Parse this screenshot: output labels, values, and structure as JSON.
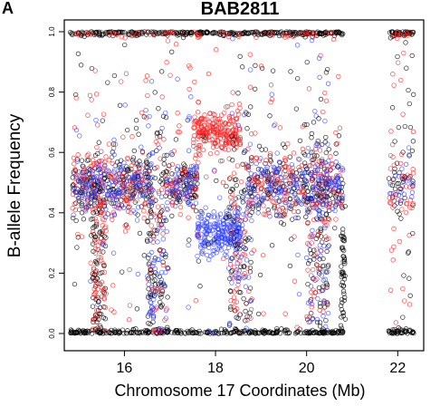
{
  "panel_label": "A",
  "chart_data": {
    "type": "scatter",
    "title": "BAB2811",
    "xlabel": "Chromosome 17 Coordinates (Mb)",
    "ylabel": "B-allele Frequency",
    "xlim": [
      14.7,
      22.55
    ],
    "ylim": [
      0,
      1.0
    ],
    "x_ticks": [
      16,
      18,
      20,
      22
    ],
    "y_ticks": [
      0.0,
      0.2,
      0.4,
      0.6,
      0.8,
      1.0
    ],
    "x_tick_labels": [
      "16",
      "18",
      "20",
      "22"
    ],
    "y_tick_labels": [
      "0.0",
      "0.2",
      "0.4",
      "0.6",
      "0.8",
      "1.0"
    ],
    "grid": false,
    "marker": "open-circle",
    "data_gap_mb": [
      20.9,
      21.8
    ],
    "series_colors": [
      "#000000",
      "#ff2020",
      "#3344ff"
    ],
    "clusters": [
      {
        "color_index": 0,
        "x_range": [
          14.8,
          20.8
        ],
        "y_center": 1.0,
        "y_spread": 0.006,
        "count": 330
      },
      {
        "color_index": 0,
        "x_range": [
          14.8,
          20.8
        ],
        "y_center": 0.0,
        "y_spread": 0.006,
        "count": 330
      },
      {
        "color_index": 0,
        "x_range": [
          21.8,
          22.35
        ],
        "y_center": 1.0,
        "y_spread": 0.006,
        "count": 45
      },
      {
        "color_index": 0,
        "x_range": [
          21.8,
          22.35
        ],
        "y_center": 0.0,
        "y_spread": 0.006,
        "count": 45
      },
      {
        "color_index": 1,
        "x_range": [
          14.9,
          20.6
        ],
        "y_center": 1.0,
        "y_spread": 0.01,
        "count": 70
      },
      {
        "color_index": 1,
        "x_range": [
          21.9,
          22.3
        ],
        "y_center": 1.0,
        "y_spread": 0.01,
        "count": 10
      },
      {
        "color_index": 0,
        "x_range": [
          14.85,
          16.6
        ],
        "y_center": 0.49,
        "y_spread": 0.05,
        "count": 180
      },
      {
        "color_index": 1,
        "x_range": [
          14.85,
          16.6
        ],
        "y_center": 0.49,
        "y_spread": 0.05,
        "count": 160
      },
      {
        "color_index": 2,
        "x_range": [
          14.85,
          16.6
        ],
        "y_center": 0.49,
        "y_spread": 0.045,
        "count": 170
      },
      {
        "color_index": 0,
        "x_range": [
          16.9,
          17.6
        ],
        "y_center": 0.49,
        "y_spread": 0.04,
        "count": 70
      },
      {
        "color_index": 2,
        "x_range": [
          16.9,
          17.6
        ],
        "y_center": 0.49,
        "y_spread": 0.04,
        "count": 70
      },
      {
        "color_index": 1,
        "x_range": [
          16.9,
          17.6
        ],
        "y_center": 0.49,
        "y_spread": 0.04,
        "count": 45
      },
      {
        "color_index": 1,
        "x_range": [
          17.5,
          18.55
        ],
        "y_center": 0.665,
        "y_spread": 0.035,
        "count": 230
      },
      {
        "color_index": 2,
        "x_range": [
          17.6,
          18.55
        ],
        "y_center": 0.335,
        "y_spread": 0.04,
        "count": 230
      },
      {
        "color_index": 0,
        "x_range": [
          18.7,
          20.8
        ],
        "y_center": 0.49,
        "y_spread": 0.05,
        "count": 170
      },
      {
        "color_index": 1,
        "x_range": [
          18.7,
          20.8
        ],
        "y_center": 0.49,
        "y_spread": 0.05,
        "count": 150
      },
      {
        "color_index": 2,
        "x_range": [
          18.7,
          20.8
        ],
        "y_center": 0.49,
        "y_spread": 0.045,
        "count": 190
      },
      {
        "color_index": 0,
        "x_range": [
          21.8,
          22.35
        ],
        "y_center": 0.49,
        "y_spread": 0.05,
        "count": 25
      },
      {
        "color_index": 1,
        "x_range": [
          21.8,
          22.35
        ],
        "y_center": 0.49,
        "y_spread": 0.05,
        "count": 25
      },
      {
        "color_index": 2,
        "x_range": [
          21.8,
          22.35
        ],
        "y_center": 0.49,
        "y_spread": 0.045,
        "count": 25
      },
      {
        "color_index": 0,
        "x_range": [
          15.3,
          15.6
        ],
        "y_center": 0.25,
        "y_spread": 0.2,
        "count": 80
      },
      {
        "color_index": 1,
        "x_range": [
          15.3,
          15.6
        ],
        "y_center": 0.25,
        "y_spread": 0.2,
        "count": 70
      },
      {
        "color_index": 0,
        "x_range": [
          16.5,
          16.95
        ],
        "y_center": 0.3,
        "y_spread": 0.22,
        "count": 90
      },
      {
        "color_index": 2,
        "x_range": [
          16.5,
          16.95
        ],
        "y_center": 0.3,
        "y_spread": 0.22,
        "count": 70
      },
      {
        "color_index": 1,
        "x_range": [
          16.5,
          16.95
        ],
        "y_center": 0.3,
        "y_spread": 0.22,
        "count": 40
      },
      {
        "color_index": 0,
        "x_range": [
          18.3,
          18.8
        ],
        "y_center": 0.28,
        "y_spread": 0.2,
        "count": 80
      },
      {
        "color_index": 1,
        "x_range": [
          18.3,
          18.8
        ],
        "y_center": 0.28,
        "y_spread": 0.2,
        "count": 60
      },
      {
        "color_index": 2,
        "x_range": [
          18.3,
          18.8
        ],
        "y_center": 0.28,
        "y_spread": 0.2,
        "count": 50
      },
      {
        "color_index": 0,
        "x_range": [
          20.0,
          20.5
        ],
        "y_center": 0.3,
        "y_spread": 0.22,
        "count": 70
      },
      {
        "color_index": 1,
        "x_range": [
          20.0,
          20.5
        ],
        "y_center": 0.3,
        "y_spread": 0.22,
        "count": 60
      },
      {
        "color_index": 2,
        "x_range": [
          20.0,
          20.5
        ],
        "y_center": 0.3,
        "y_spread": 0.22,
        "count": 60
      },
      {
        "color_index": 0,
        "x_range": [
          20.75,
          20.85
        ],
        "y_center": 0.2,
        "y_spread": 0.1,
        "count": 50
      },
      {
        "color_index": 0,
        "x_range": [
          14.8,
          20.8
        ],
        "y_center": 0.5,
        "y_spread": 0.28,
        "count": 120
      },
      {
        "color_index": 1,
        "x_range": [
          14.8,
          20.8
        ],
        "y_center": 0.5,
        "y_spread": 0.28,
        "count": 110
      },
      {
        "color_index": 2,
        "x_range": [
          14.8,
          20.8
        ],
        "y_center": 0.5,
        "y_spread": 0.28,
        "count": 60
      },
      {
        "color_index": 1,
        "x_range": [
          21.8,
          22.35
        ],
        "y_center": 0.5,
        "y_spread": 0.28,
        "count": 30
      },
      {
        "color_index": 0,
        "x_range": [
          21.8,
          22.35
        ],
        "y_center": 0.5,
        "y_spread": 0.28,
        "count": 25
      }
    ]
  }
}
